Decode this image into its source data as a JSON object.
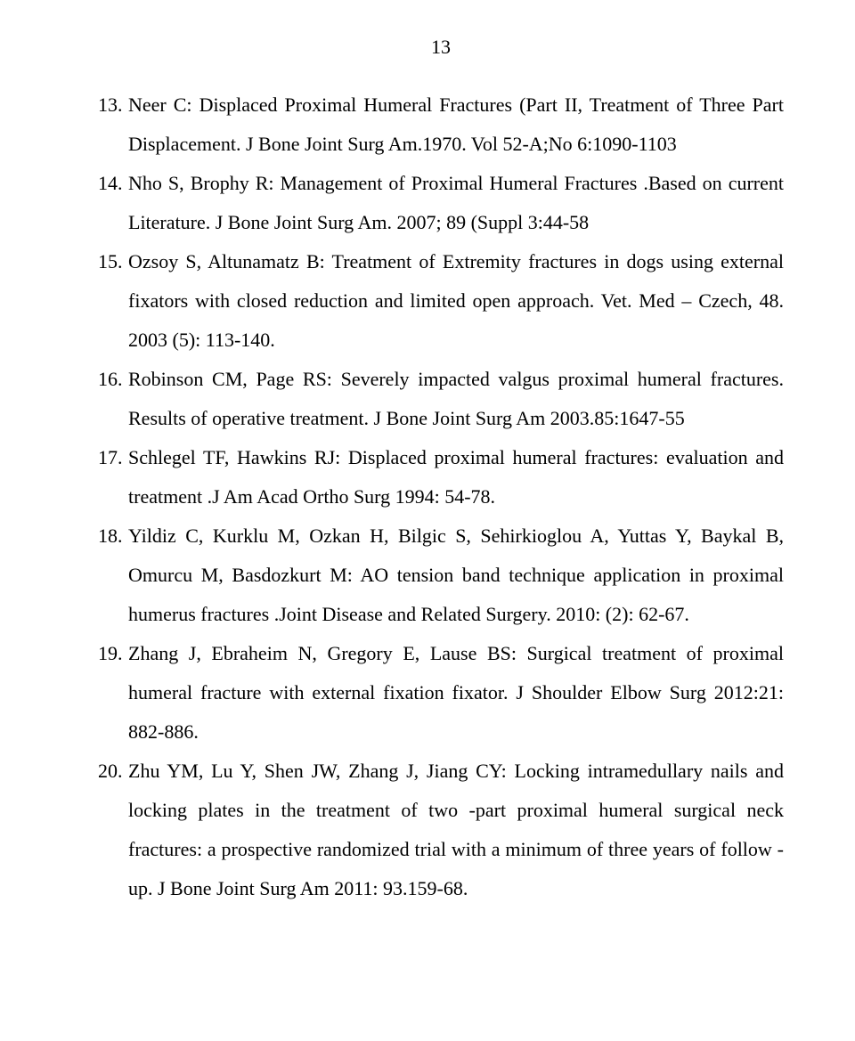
{
  "page_number": "13",
  "font": {
    "family": "Times New Roman",
    "body_size_pt": 16,
    "line_height": 2.0,
    "color": "#000000",
    "background": "#ffffff"
  },
  "references": [
    {
      "n": 13,
      "text": "Neer C: Displaced Proximal Humeral Fractures (Part II, Treatment of Three Part Displacement. J Bone Joint Surg Am.1970. Vol 52-A;No 6:1090-1103"
    },
    {
      "n": 14,
      "text": "Nho S, Brophy R: Management of Proximal Humeral Fractures .Based on current Literature. J Bone Joint Surg Am. 2007; 89 (Suppl 3:44-58"
    },
    {
      "n": 15,
      "text": "Ozsoy S, Altunamatz B: Treatment of Extremity fractures in dogs using external fixators with closed reduction and limited open approach. Vet. Med – Czech, 48. 2003 (5): 113-140."
    },
    {
      "n": 16,
      "text": "Robinson CM, Page RS: Severely impacted valgus proximal humeral fractures. Results of operative treatment. J Bone Joint Surg Am 2003.85:1647-55"
    },
    {
      "n": 17,
      "text": "Schlegel TF, Hawkins RJ: Displaced proximal humeral fractures: evaluation and treatment .J Am Acad Ortho Surg 1994: 54-78."
    },
    {
      "n": 18,
      "text": "Yildiz C, Kurklu M, Ozkan H, Bilgic S, Sehirkioglou A, Yuttas Y, Baykal B, Omurcu M, Basdozkurt M: AO tension band technique application in proximal humerus fractures .Joint Disease and Related Surgery. 2010: (2): 62-67."
    },
    {
      "n": 19,
      "text": "Zhang J, Ebraheim N, Gregory E, Lause BS: Surgical treatment of proximal humeral fracture with external fixation fixator. J Shoulder Elbow Surg 2012:21: 882-886."
    },
    {
      "n": 20,
      "text": "Zhu YM, Lu Y, Shen JW, Zhang J, Jiang CY: Locking intramedullary nails and locking plates in the treatment of two -part proximal humeral surgical neck fractures: a prospective randomized trial with a minimum of three years of follow -up. J Bone Joint Surg Am 2011: 93.159-68."
    }
  ]
}
